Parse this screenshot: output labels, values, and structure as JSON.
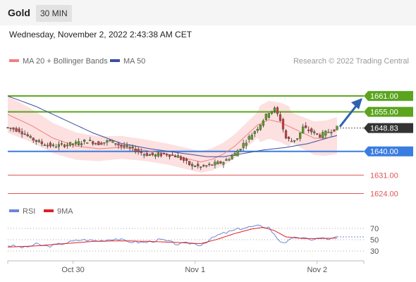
{
  "header": {
    "asset": "Gold",
    "timeframe": "30 MIN"
  },
  "timestamp": "Wednesday, November 2, 2022 2:43:38 AM CET",
  "legend": {
    "ma20_label": "MA 20 + Bollinger Bands",
    "ma50_label": "MA 50",
    "credit": "Research © 2022 Trading Central"
  },
  "rsi_legend": {
    "rsi_label": "RSI",
    "ma_label": "9MA"
  },
  "colors": {
    "resistance": "#5aa41e",
    "support": "#3a7de0",
    "minor_support": "#e05555",
    "current": "#333333",
    "ma20": "#f08080",
    "ma50": "#3b4fa0",
    "bands": "#fde0e0",
    "candle_up": "#5aa41e",
    "candle_down": "#d04040",
    "rsi": "#6b86d8",
    "rsi_ma": "#e02020",
    "arrow": "#2f63b0"
  },
  "chart_data": {
    "type": "candlestick",
    "x_ticks": [
      "Oct 30",
      "Nov 1",
      "Nov 2"
    ],
    "price_levels": [
      {
        "label": "1661.00",
        "value": 1661.0,
        "kind": "resistance"
      },
      {
        "label": "1655.00",
        "value": 1655.0,
        "kind": "resistance"
      },
      {
        "label": "1648.83",
        "value": 1648.83,
        "kind": "current"
      },
      {
        "label": "1640.00",
        "value": 1640.0,
        "kind": "support"
      },
      {
        "label": "1631.00",
        "value": 1631.0,
        "kind": "minor_support"
      },
      {
        "label": "1624.00",
        "value": 1624.0,
        "kind": "minor_support"
      }
    ],
    "price_range": [
      1622,
      1668
    ],
    "ma20_ranges": [
      [
        0,
        1654
      ],
      [
        8,
        1650
      ],
      [
        16,
        1645
      ],
      [
        24,
        1642
      ],
      [
        32,
        1641
      ],
      [
        40,
        1641.5
      ],
      [
        48,
        1640.5
      ],
      [
        56,
        1639
      ],
      [
        64,
        1637
      ],
      [
        68,
        1636
      ],
      [
        72,
        1637
      ],
      [
        76,
        1639
      ],
      [
        80,
        1642
      ],
      [
        84,
        1646
      ],
      [
        88,
        1650
      ],
      [
        92,
        1652
      ],
      [
        96,
        1651
      ],
      [
        100,
        1649
      ],
      [
        104,
        1647
      ],
      [
        108,
        1645
      ],
      [
        112,
        1645
      ],
      [
        116,
        1646
      ]
    ],
    "ma50_ranges": [
      [
        0,
        1661
      ],
      [
        10,
        1657
      ],
      [
        20,
        1652
      ],
      [
        30,
        1647
      ],
      [
        40,
        1643
      ],
      [
        50,
        1641
      ],
      [
        60,
        1639.5
      ],
      [
        70,
        1638
      ],
      [
        76,
        1638
      ],
      [
        82,
        1639
      ],
      [
        90,
        1640.5
      ],
      [
        98,
        1641.5
      ],
      [
        106,
        1643
      ],
      [
        114,
        1645.5
      ],
      [
        116,
        1646
      ]
    ],
    "candle_path": [
      [
        0,
        1649
      ],
      [
        4,
        1648
      ],
      [
        8,
        1645
      ],
      [
        12,
        1643
      ],
      [
        16,
        1642
      ],
      [
        20,
        1642.5
      ],
      [
        24,
        1643
      ],
      [
        28,
        1644
      ],
      [
        32,
        1643
      ],
      [
        36,
        1644
      ],
      [
        40,
        1642
      ],
      [
        44,
        1641
      ],
      [
        48,
        1639
      ],
      [
        52,
        1638.5
      ],
      [
        56,
        1639
      ],
      [
        60,
        1638
      ],
      [
        64,
        1635
      ],
      [
        68,
        1634
      ],
      [
        72,
        1635
      ],
      [
        76,
        1636
      ],
      [
        80,
        1639
      ],
      [
        84,
        1644
      ],
      [
        88,
        1649
      ],
      [
        92,
        1655
      ],
      [
        94,
        1656
      ],
      [
        96,
        1652
      ],
      [
        98,
        1645
      ],
      [
        100,
        1644
      ],
      [
        102,
        1645
      ],
      [
        104,
        1649
      ],
      [
        106,
        1648
      ],
      [
        108,
        1647
      ],
      [
        110,
        1646
      ],
      [
        112,
        1647
      ],
      [
        114,
        1648
      ],
      [
        116,
        1648.83
      ]
    ],
    "rsi": {
      "levels": [
        70,
        50,
        30
      ],
      "range": [
        15,
        85
      ],
      "rsi_ranges": [
        [
          0,
          40
        ],
        [
          6,
          36
        ],
        [
          10,
          42
        ],
        [
          14,
          38
        ],
        [
          20,
          44
        ],
        [
          26,
          50
        ],
        [
          32,
          48
        ],
        [
          38,
          52
        ],
        [
          42,
          47
        ],
        [
          48,
          45
        ],
        [
          54,
          50
        ],
        [
          60,
          42
        ],
        [
          64,
          44
        ],
        [
          68,
          41
        ],
        [
          74,
          58
        ],
        [
          78,
          64
        ],
        [
          82,
          70
        ],
        [
          86,
          73
        ],
        [
          88,
          74
        ],
        [
          92,
          72
        ],
        [
          94,
          58
        ],
        [
          96,
          47
        ],
        [
          98,
          46
        ],
        [
          102,
          55
        ],
        [
          106,
          50
        ],
        [
          110,
          53
        ],
        [
          114,
          51
        ],
        [
          116,
          55
        ]
      ],
      "ma_ranges": [
        [
          0,
          37
        ],
        [
          10,
          39
        ],
        [
          20,
          43
        ],
        [
          30,
          47
        ],
        [
          40,
          48
        ],
        [
          50,
          47
        ],
        [
          60,
          45
        ],
        [
          68,
          43
        ],
        [
          74,
          51
        ],
        [
          80,
          61
        ],
        [
          86,
          69
        ],
        [
          90,
          72
        ],
        [
          94,
          66
        ],
        [
          98,
          55
        ],
        [
          104,
          52
        ],
        [
          110,
          52
        ],
        [
          116,
          53
        ]
      ]
    }
  }
}
